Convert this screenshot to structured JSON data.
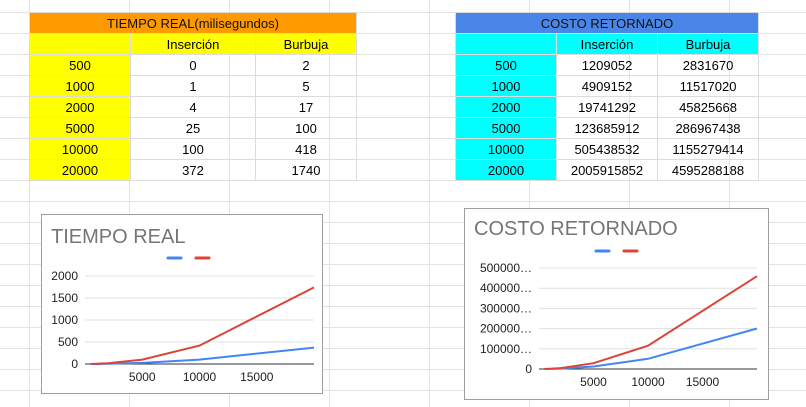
{
  "tiempo_table": {
    "title": "TIEMPO REAL(milisegundos)",
    "headers": [
      "",
      "Inserción",
      "Burbuja"
    ],
    "rows": [
      [
        "500",
        "0",
        "2"
      ],
      [
        "1000",
        "1",
        "5"
      ],
      [
        "2000",
        "4",
        "17"
      ],
      [
        "5000",
        "25",
        "100"
      ],
      [
        "10000",
        "100",
        "418"
      ],
      [
        "20000",
        "372",
        "1740"
      ]
    ]
  },
  "costo_table": {
    "title": "COSTO RETORNADO",
    "headers": [
      "",
      "Inserción",
      "Burbuja"
    ],
    "rows": [
      [
        "500",
        "1209052",
        "2831670"
      ],
      [
        "1000",
        "4909152",
        "11517020"
      ],
      [
        "2000",
        "19741292",
        "45825668"
      ],
      [
        "5000",
        "123685912",
        "286967438"
      ],
      [
        "10000",
        "505438532",
        "1155279414"
      ],
      [
        "20000",
        "2005915852",
        "4595288188"
      ]
    ]
  },
  "chart_data": [
    {
      "type": "line",
      "title": "TIEMPO REAL",
      "x": [
        500,
        1000,
        2000,
        5000,
        10000,
        20000
      ],
      "xlim": [
        0,
        20000
      ],
      "ylim": [
        0,
        2000
      ],
      "xticks": [
        "5000",
        "10000",
        "15000"
      ],
      "xtick_values": [
        5000,
        10000,
        15000
      ],
      "yticks": [
        "0",
        "500",
        "1000",
        "1500",
        "2000"
      ],
      "ytick_values": [
        0,
        500,
        1000,
        1500,
        2000
      ],
      "series": [
        {
          "color": "#4285f4",
          "values": [
            0,
            1,
            4,
            25,
            100,
            372
          ]
        },
        {
          "color": "#db4437",
          "values": [
            2,
            5,
            17,
            100,
            418,
            1740
          ]
        }
      ],
      "legend": "top"
    },
    {
      "type": "line",
      "title": "COSTO RETORNADO",
      "x": [
        500,
        1000,
        2000,
        5000,
        10000,
        20000
      ],
      "xlim": [
        0,
        20000
      ],
      "ylim": [
        0,
        5000000000
      ],
      "xticks": [
        "5000",
        "10000",
        "15000"
      ],
      "xtick_values": [
        5000,
        10000,
        15000
      ],
      "yticks": [
        "0",
        "100000…",
        "200000…",
        "300000…",
        "400000…",
        "500000…"
      ],
      "ytick_values": [
        0,
        1000000000,
        2000000000,
        3000000000,
        4000000000,
        5000000000
      ],
      "series": [
        {
          "color": "#4285f4",
          "values": [
            1209052,
            4909152,
            19741292,
            123685912,
            505438532,
            2005915852
          ]
        },
        {
          "color": "#db4437",
          "values": [
            2831670,
            11517020,
            45825668,
            286967438,
            1155279414,
            4595288188
          ]
        }
      ],
      "legend": "top"
    }
  ]
}
